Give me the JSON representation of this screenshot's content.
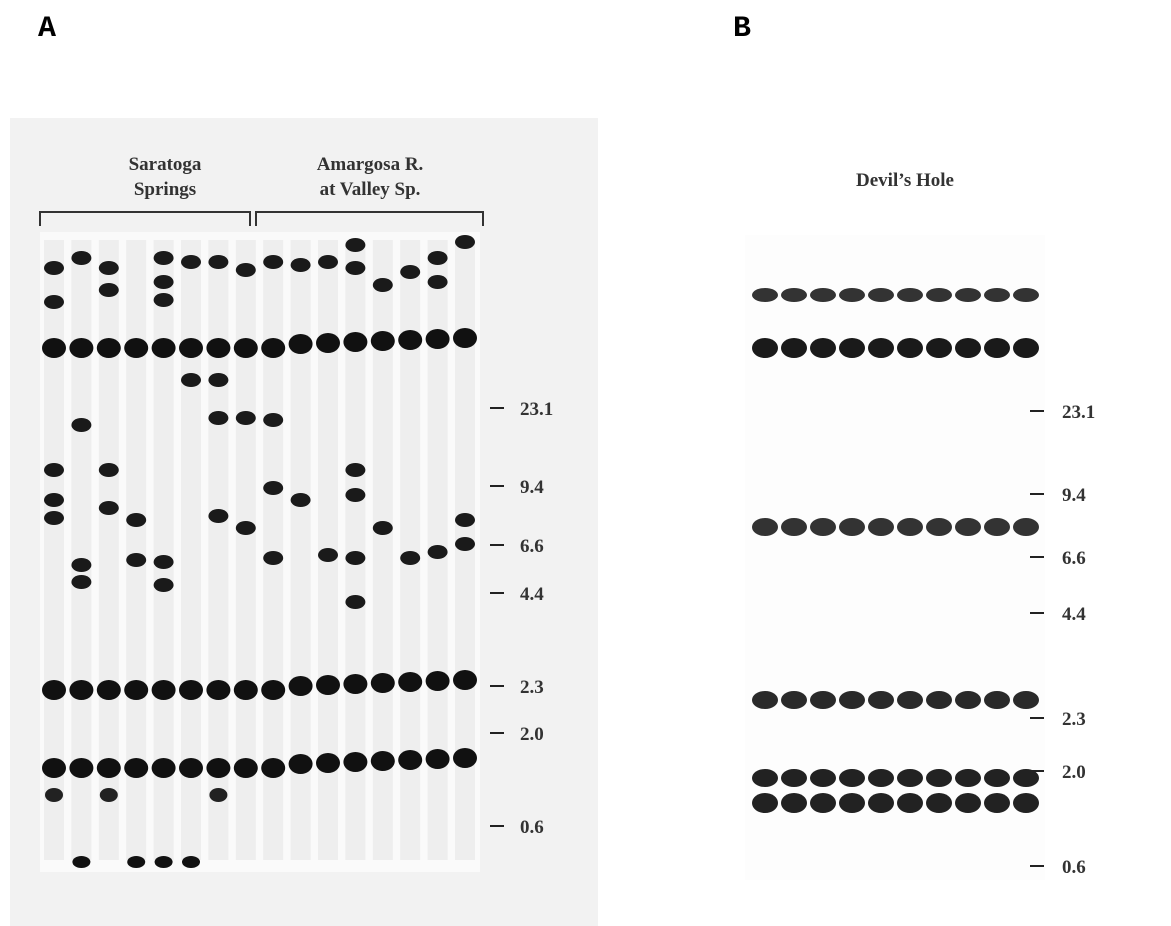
{
  "panel_a": {
    "label": "A",
    "groups": [
      {
        "lines": [
          "Saratoga",
          "Springs"
        ]
      },
      {
        "lines": [
          "Amargosa R.",
          "at Valley Sp."
        ]
      }
    ],
    "size_markers": [
      "23.1",
      "9.4",
      "6.6",
      "4.4",
      "2.3",
      "2.0",
      "0.6"
    ]
  },
  "panel_b": {
    "label": "B",
    "title": "Devil’s Hole",
    "size_markers": [
      "23.1",
      "9.4",
      "6.6",
      "4.4",
      "2.3",
      "2.0",
      "0.6"
    ]
  }
}
